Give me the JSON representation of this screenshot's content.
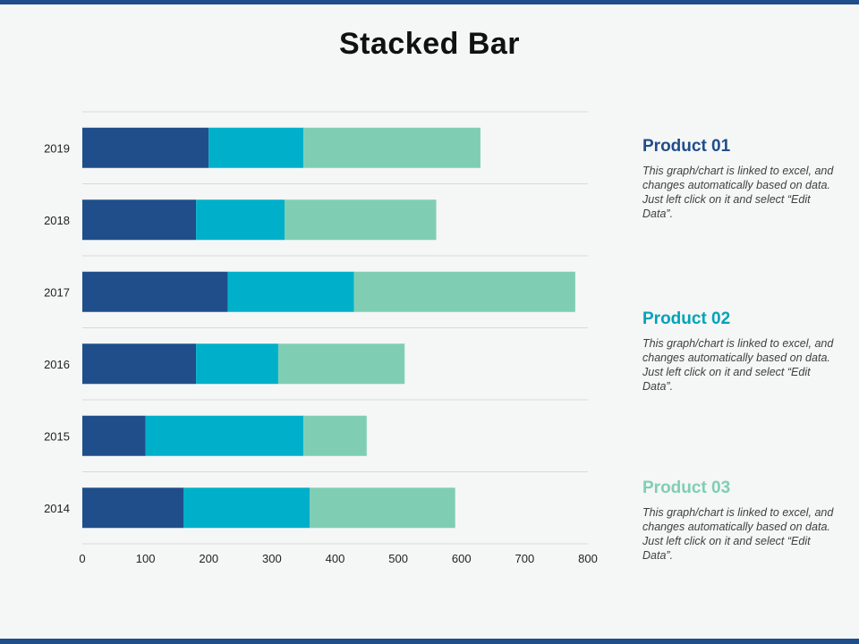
{
  "title": "Stacked Bar",
  "chart_data": {
    "type": "bar",
    "orientation": "horizontal",
    "stacked": true,
    "title": "Stacked Bar",
    "categories": [
      "2019",
      "2018",
      "2017",
      "2016",
      "2015",
      "2014"
    ],
    "series": [
      {
        "name": "Product 01",
        "color": "#1f4e8a",
        "values": [
          200,
          180,
          230,
          180,
          100,
          160
        ]
      },
      {
        "name": "Product 02",
        "color": "#00b0ca",
        "values": [
          150,
          140,
          200,
          130,
          250,
          200
        ]
      },
      {
        "name": "Product 03",
        "color": "#7fceb4",
        "values": [
          280,
          240,
          350,
          200,
          100,
          230
        ]
      }
    ],
    "xlim": [
      0,
      800
    ],
    "xticks": [
      "0",
      "100",
      "200",
      "300",
      "400",
      "500",
      "600",
      "700",
      "800"
    ],
    "xlabel": "",
    "ylabel": "",
    "grid": true
  },
  "legend": [
    {
      "title": "Product 01",
      "color": "#1f4e8a",
      "text": "This graph/chart is linked to excel, and changes automatically based on data. Just left click on it and select “Edit Data”."
    },
    {
      "title": "Product 02",
      "color": "#00a3b8",
      "text": "This graph/chart is linked to excel, and changes automatically based on data. Just left click on it and select “Edit Data”."
    },
    {
      "title": "Product 03",
      "color": "#7fceb4",
      "text": "This graph/chart is linked to excel, and changes automatically based on data. Just left click on it and select “Edit Data”."
    }
  ]
}
